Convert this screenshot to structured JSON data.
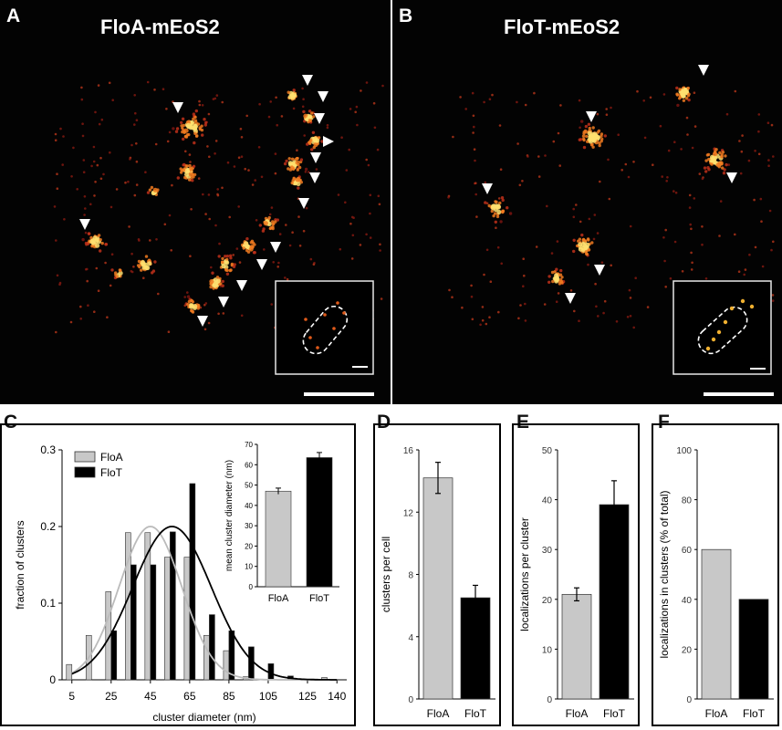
{
  "panels": {
    "A": "A",
    "B": "B",
    "C": "C",
    "D": "D",
    "E": "E",
    "F": "F"
  },
  "titles": {
    "A": "FloA-mEoS2",
    "B": "FloT-mEoS2"
  },
  "colors": {
    "floA": "#c8c8c8",
    "floT": "#000000",
    "background_micrograph": "#030303",
    "hot_spot": "#ffdd55",
    "marker": "#ffffff"
  },
  "chart_data": [
    {
      "id": "C",
      "type": "bar",
      "xlabel": "cluster diameter (nm)",
      "ylabel": "fraction of clusters",
      "xticks": [
        "5",
        "25",
        "45",
        "65",
        "85",
        "105",
        "125",
        "140"
      ],
      "xticks_values": [
        5,
        25,
        45,
        65,
        85,
        105,
        125,
        140
      ],
      "yticks": [
        "0",
        "0.1",
        "0.2",
        "0.3"
      ],
      "xlim": [
        0,
        145
      ],
      "ylim": [
        0,
        0.3
      ],
      "legend": {
        "position": "top-left",
        "entries": [
          "FloA",
          "FloT"
        ]
      },
      "series": [
        {
          "name": "FloA",
          "color": "#c8c8c8",
          "x": [
            5,
            15,
            25,
            35,
            45,
            55,
            65,
            75,
            85,
            95,
            105,
            115,
            125,
            135
          ],
          "values": [
            0.02,
            0.058,
            0.115,
            0.192,
            0.192,
            0.16,
            0.16,
            0.058,
            0.038,
            0.004,
            0.0,
            0.0,
            0.0,
            0.003
          ]
        },
        {
          "name": "FloT",
          "color": "#000000",
          "x": [
            5,
            15,
            25,
            35,
            45,
            55,
            65,
            75,
            85,
            95,
            105,
            115,
            125,
            135
          ],
          "values": [
            0.0,
            0.0,
            0.064,
            0.15,
            0.15,
            0.193,
            0.256,
            0.085,
            0.064,
            0.043,
            0.021,
            0.005,
            0.0,
            0.0
          ]
        }
      ],
      "fits": [
        {
          "name": "FloA",
          "color": "#c8c8c8",
          "mean": 45,
          "sd": 16,
          "peak": 0.2
        },
        {
          "name": "FloT",
          "color": "#000000",
          "mean": 56,
          "sd": 20,
          "peak": 0.2
        }
      ],
      "inset": {
        "type": "bar",
        "ylabel": "mean cluster diameter (nm)",
        "categories": [
          "FloA",
          "FloT"
        ],
        "values": [
          47,
          63.5
        ],
        "errors": [
          1.5,
          2.5
        ],
        "colors": [
          "#c8c8c8",
          "#000000"
        ],
        "ylim": [
          0,
          70
        ],
        "yticks": [
          "0",
          "10",
          "20",
          "30",
          "40",
          "50",
          "60",
          "70"
        ]
      }
    },
    {
      "id": "D",
      "type": "bar",
      "ylabel": "clusters per cell",
      "categories": [
        "FloA",
        "FloT"
      ],
      "values": [
        14.2,
        6.5
      ],
      "errors": [
        1.0,
        0.8
      ],
      "colors": [
        "#c8c8c8",
        "#000000"
      ],
      "ylim": [
        0,
        16
      ],
      "yticks": [
        "0",
        "4",
        "8",
        "12",
        "16"
      ]
    },
    {
      "id": "E",
      "type": "bar",
      "ylabel": "localizations per cluster",
      "categories": [
        "FloA",
        "FloT"
      ],
      "values": [
        21,
        39
      ],
      "errors": [
        1.3,
        4.8
      ],
      "colors": [
        "#c8c8c8",
        "#000000"
      ],
      "ylim": [
        0,
        50
      ],
      "yticks": [
        "0",
        "10",
        "20",
        "30",
        "40",
        "50"
      ]
    },
    {
      "id": "F",
      "type": "bar",
      "ylabel": "localizations in clusters (% of total)",
      "categories": [
        "FloA",
        "FloT"
      ],
      "values": [
        60,
        40
      ],
      "colors": [
        "#c8c8c8",
        "#000000"
      ],
      "ylim": [
        0,
        100
      ],
      "yticks": [
        "0",
        "20",
        "40",
        "60",
        "80",
        "100"
      ]
    }
  ]
}
